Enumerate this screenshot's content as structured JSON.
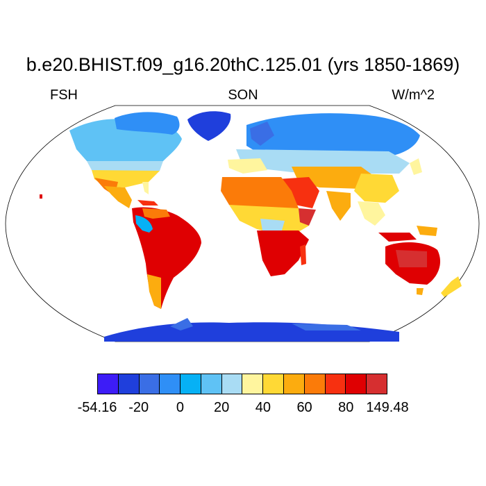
{
  "title": "b.e20.BHIST.f09_g16.20thC.125.01 (yrs 1850-1869)",
  "left_label": "FSH",
  "center_label": "SON",
  "right_label": "W/m^2",
  "colorbar": {
    "colors": [
      "#3d1cf7",
      "#1f3fdc",
      "#3a6ee5",
      "#2f8ff6",
      "#06b1f5",
      "#5fc2f5",
      "#a9dcf4",
      "#fff59e",
      "#ffd935",
      "#fcac0f",
      "#fb7b09",
      "#f73010",
      "#df0002",
      "#d62f30"
    ],
    "labels": [
      "-54.16",
      "-20",
      "0",
      "20",
      "40",
      "60",
      "80",
      "149.48"
    ]
  }
}
